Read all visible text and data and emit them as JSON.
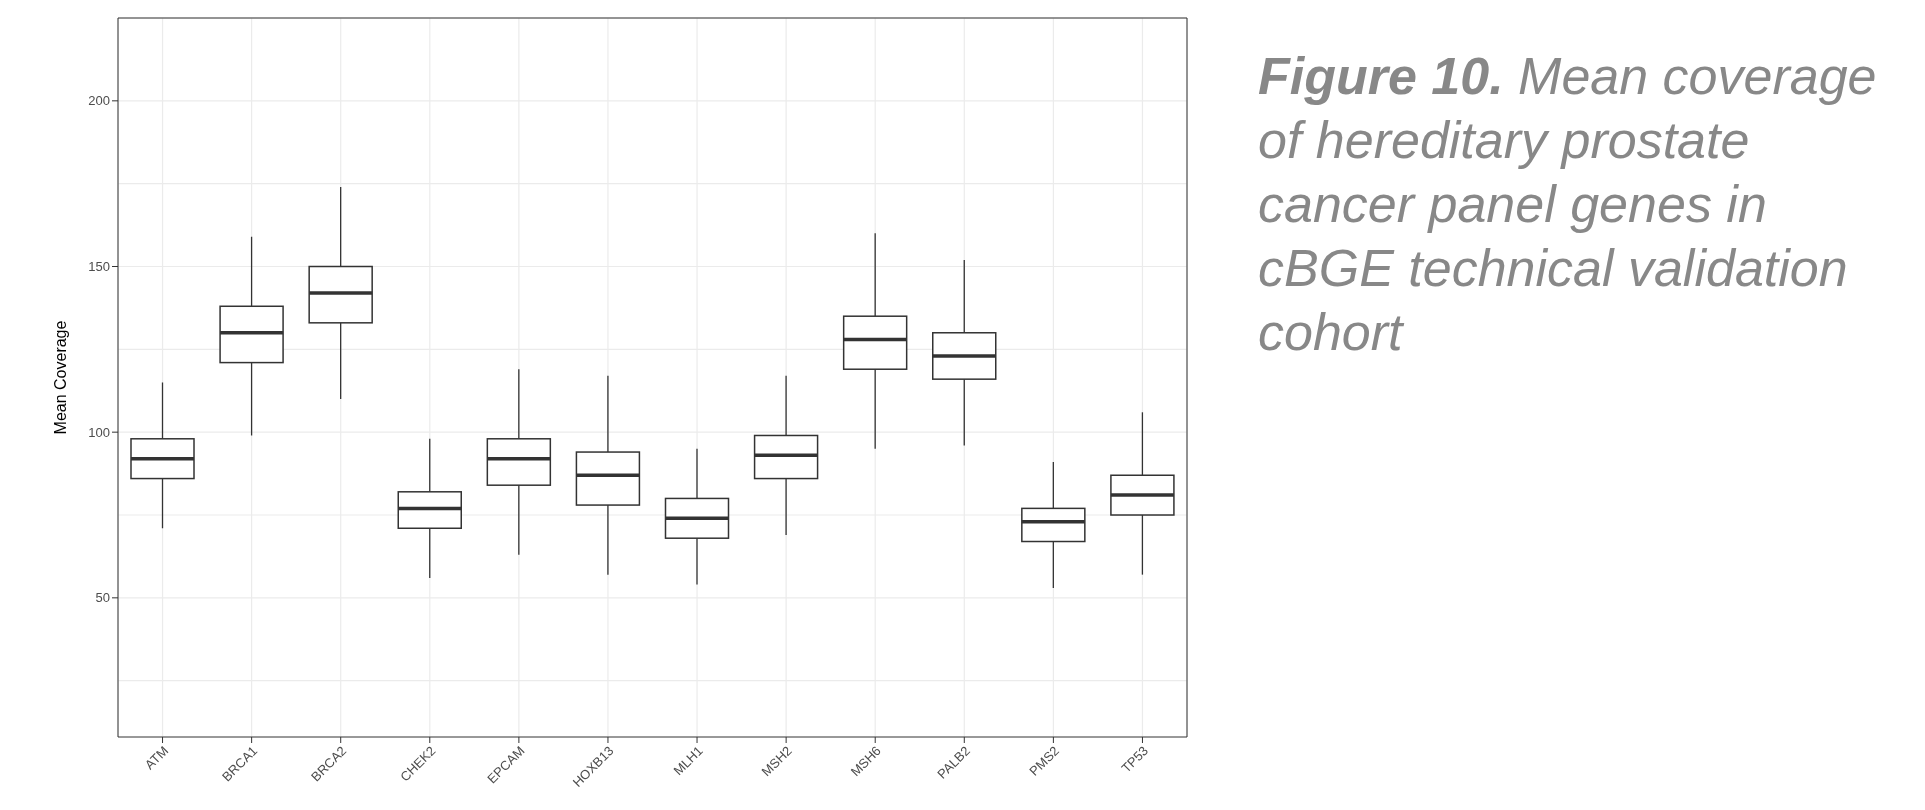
{
  "chart_data": {
    "type": "box",
    "title": "Figure 10. Mean coverage of hereditary prostate cancer panel genes in cBGE technical validation cohort",
    "ylabel": "Mean Coverage",
    "categories": [
      "ATM",
      "BRCA1",
      "BRCA2",
      "CHEK2",
      "EPCAM",
      "HOXB13",
      "MLH1",
      "MSH2",
      "MSH6",
      "PALB2",
      "PMS2",
      "TP53"
    ],
    "boxes": [
      {
        "low": 71,
        "q1": 86,
        "median": 92,
        "q3": 98,
        "high": 115
      },
      {
        "low": 99,
        "q1": 121,
        "median": 130,
        "q3": 138,
        "high": 159
      },
      {
        "low": 110,
        "q1": 133,
        "median": 142,
        "q3": 150,
        "high": 174
      },
      {
        "low": 56,
        "q1": 71,
        "median": 77,
        "q3": 82,
        "high": 98
      },
      {
        "low": 63,
        "q1": 84,
        "median": 92,
        "q3": 98,
        "high": 119
      },
      {
        "low": 57,
        "q1": 78,
        "median": 87,
        "q3": 94,
        "high": 117
      },
      {
        "low": 54,
        "q1": 68,
        "median": 74,
        "q3": 80,
        "high": 95
      },
      {
        "low": 69,
        "q1": 86,
        "median": 93,
        "q3": 99,
        "high": 117
      },
      {
        "low": 95,
        "q1": 119,
        "median": 128,
        "q3": 135,
        "high": 160
      },
      {
        "low": 96,
        "q1": 116,
        "median": 123,
        "q3": 130,
        "high": 152
      },
      {
        "low": 53,
        "q1": 67,
        "median": 73,
        "q3": 77,
        "high": 91
      },
      {
        "low": 57,
        "q1": 75,
        "median": 81,
        "q3": 87,
        "high": 106
      }
    ],
    "color": "#333333",
    "ylim": [
      8,
      225
    ],
    "yticks": [
      50,
      100,
      150,
      200
    ],
    "grid": true
  }
}
